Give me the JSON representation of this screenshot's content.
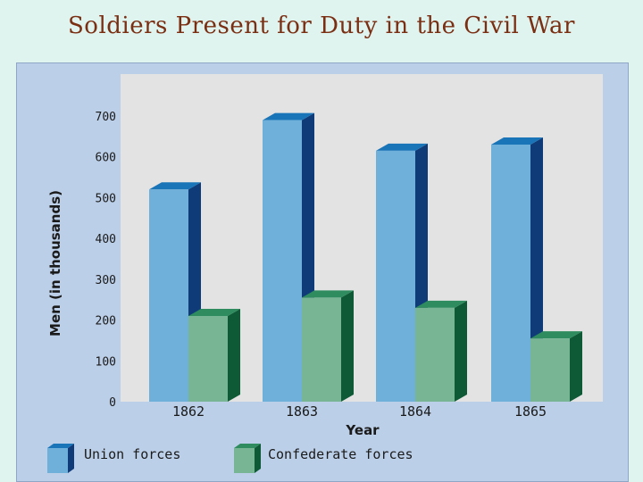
{
  "title": "Soldiers Present for Duty in the Civil War",
  "chart_data": {
    "type": "bar",
    "title": "Soldiers Present for Duty in the Civil War",
    "categories": [
      "1862",
      "1863",
      "1864",
      "1865"
    ],
    "series": [
      {
        "name": "Union forces",
        "values": [
          520,
          690,
          615,
          630
        ],
        "color": "#6fb0da"
      },
      {
        "name": "Confederate forces",
        "values": [
          210,
          255,
          230,
          155
        ],
        "color": "#78b595"
      }
    ],
    "xlabel": "Year",
    "ylabel": "Men (in thousands)",
    "ylim": [
      0,
      800
    ],
    "yticks": [
      "0",
      "100",
      "200",
      "300",
      "400",
      "500",
      "600",
      "700"
    ],
    "legend": [
      "Union forces",
      "Confederate forces"
    ],
    "colors": {
      "union_top": "#1a74b8",
      "union_side": "#0f3b78",
      "conf_top": "#2f8c5e",
      "conf_side": "#0f5a36",
      "plot_bg": "#e3e3e3",
      "panel_bg": "#bccfe8"
    }
  }
}
